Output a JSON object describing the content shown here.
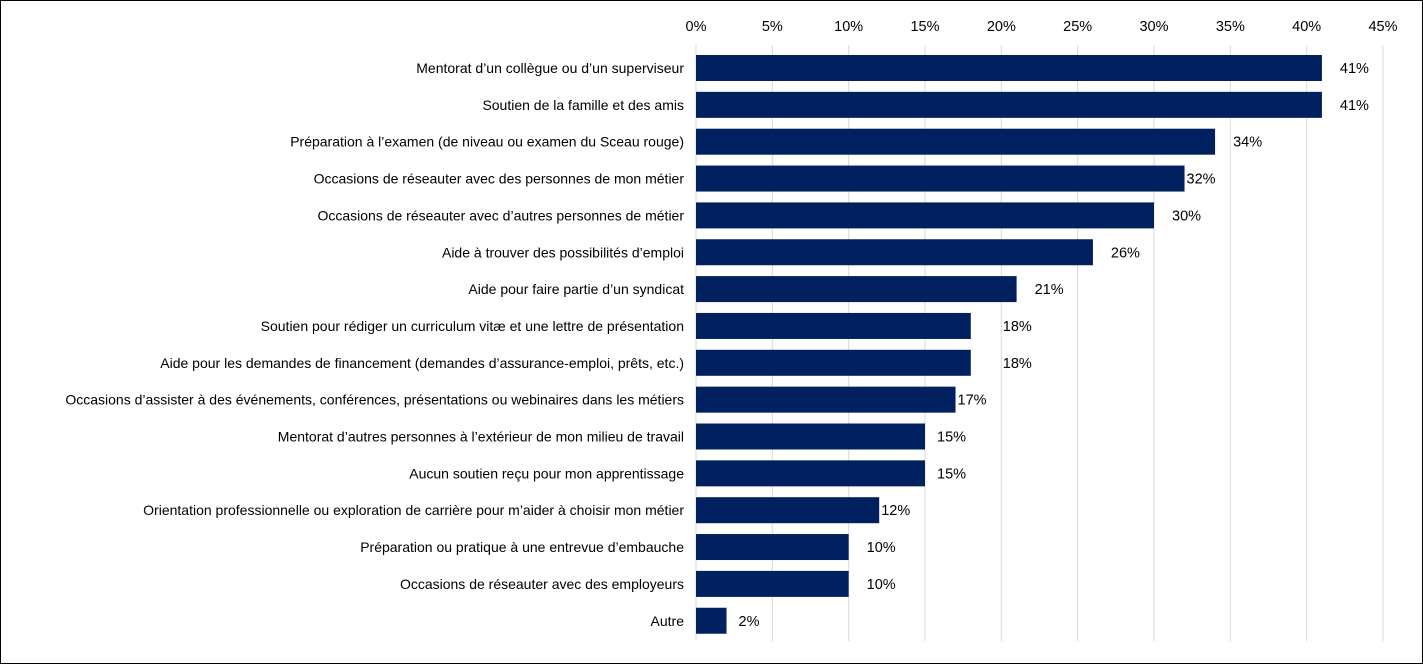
{
  "chart_data": {
    "type": "bar",
    "orientation": "horizontal",
    "title": "",
    "xlabel": "",
    "ylabel": "",
    "xlim": [
      0,
      45
    ],
    "x_ticks": [
      "0%",
      "5%",
      "10%",
      "15%",
      "20%",
      "25%",
      "30%",
      "35%",
      "40%",
      "45%"
    ],
    "x_tick_values": [
      0,
      5,
      10,
      15,
      20,
      25,
      30,
      35,
      40,
      45
    ],
    "x_axis_position": "top",
    "grid": true,
    "bar_color": "#002060",
    "categories": [
      "Mentorat d’un collègue ou d’un superviseur",
      "Soutien de la famille et des amis",
      "Préparation à l’examen (de niveau ou examen du Sceau rouge)",
      "Occasions de réseauter avec des personnes de mon métier",
      "Occasions de réseauter avec d’autres personnes de métier",
      "Aide à trouver des possibilités d’emploi",
      "Aide pour faire partie d’un syndicat",
      "Soutien pour rédiger un curriculum vitæ et une lettre de présentation",
      "Aide pour les demandes de financement (demandes d’assurance-emploi, prêts, etc.)",
      "Occasions d’assister à des événements, conférences, présentations ou webinaires dans les métiers",
      "Mentorat d’autres personnes à l’extérieur de mon milieu de travail",
      "Aucun soutien reçu pour mon apprentissage",
      "Orientation professionnelle ou exploration de carrière pour m’aider à choisir mon métier",
      "Préparation ou pratique à une entrevue d’embauche",
      "Occasions de réseauter avec des employeurs",
      "Autre"
    ],
    "values": [
      41,
      41,
      34,
      32,
      30,
      26,
      21,
      18,
      18,
      17,
      15,
      15,
      12,
      10,
      10,
      2
    ],
    "data_labels": [
      "41%",
      "41%",
      "34%",
      "32%",
      "30%",
      "26%",
      "21%",
      "18%",
      "18%",
      "17%",
      "15%",
      "15%",
      "12%",
      "10%",
      "10%",
      "2%"
    ]
  }
}
